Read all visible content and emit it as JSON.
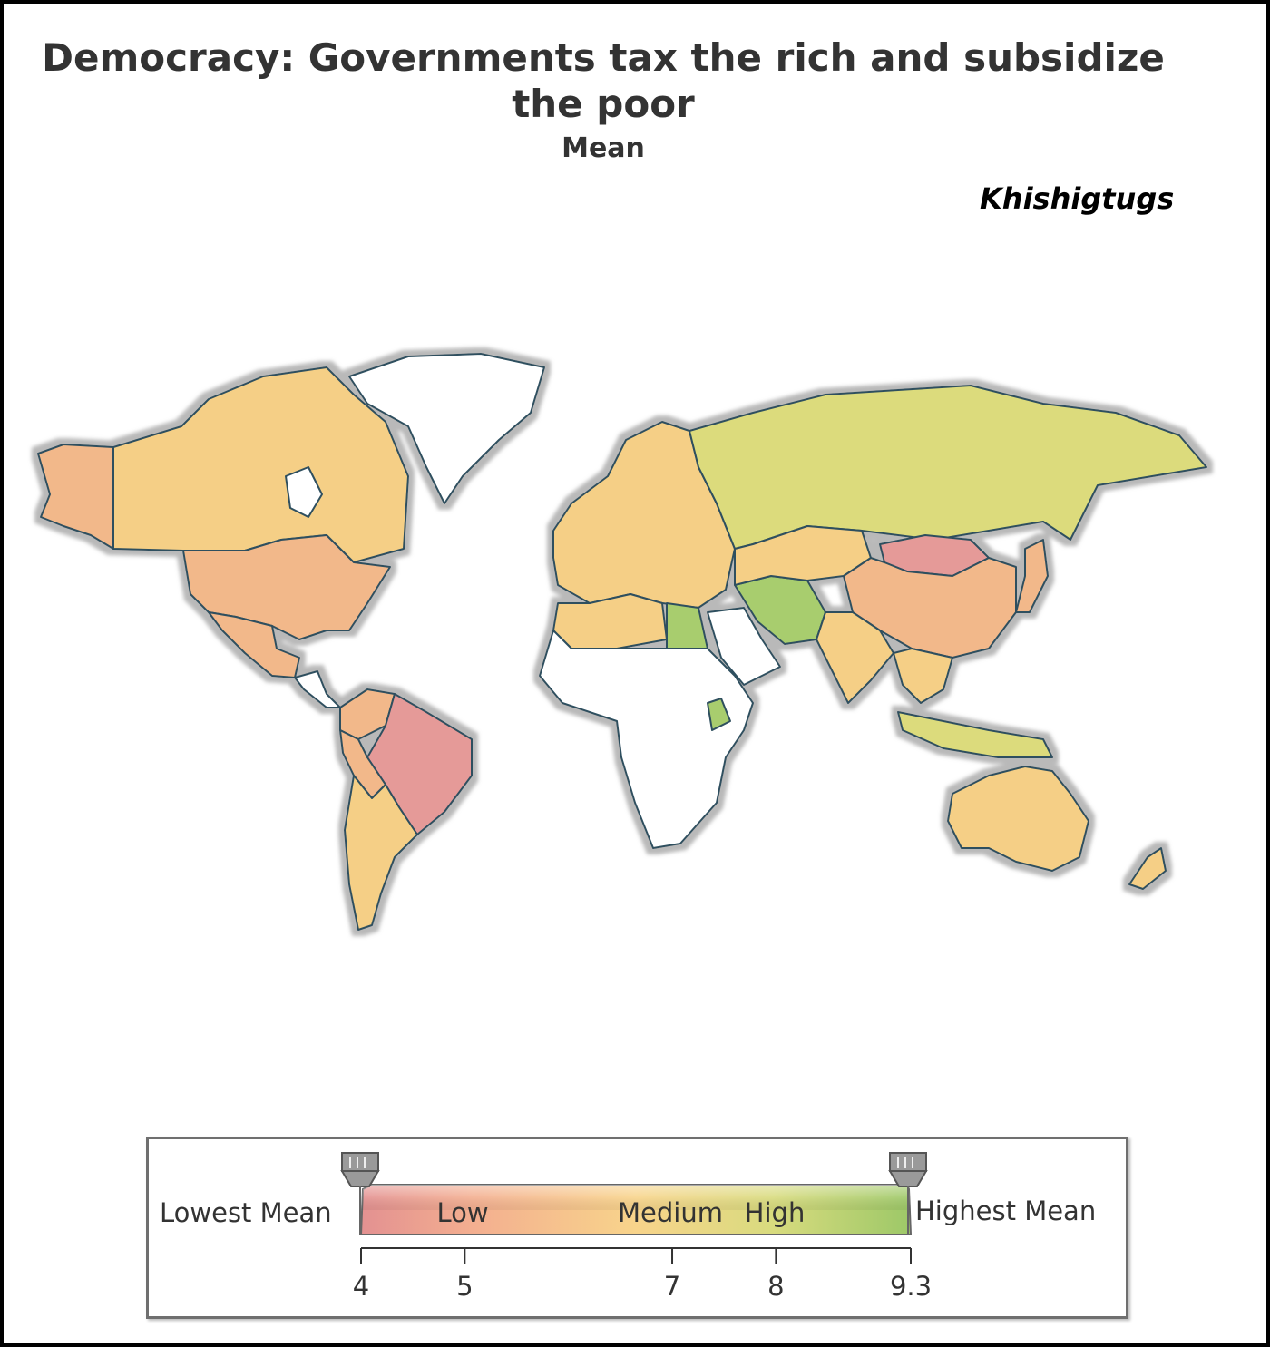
{
  "header": {
    "title_line1": "Democracy: Governments tax the rich and subsidize",
    "title_line2": "the poor",
    "subtitle": "Mean",
    "author": "Khishigtugs"
  },
  "colors": {
    "no_data": "#ffffff",
    "low": "#e59a98",
    "medium_low": "#f2b88a",
    "medium": "#f5cf86",
    "medium_high": "#dcdb7c",
    "high": "#a8cd6e",
    "border": "#2f4f5f",
    "halo": "#b9b9b9"
  },
  "legend": {
    "left_label": "Lowest Mean",
    "right_label": "Highest Mean",
    "band_low": "Low",
    "band_medium": "Medium",
    "band_high": "High",
    "min": 4,
    "max": 9.3,
    "ticks": [
      {
        "value": 4,
        "label": "4"
      },
      {
        "value": 5,
        "label": "5"
      },
      {
        "value": 7,
        "label": "7"
      },
      {
        "value": 8,
        "label": "8"
      },
      {
        "value": 9.3,
        "label": "9.3"
      }
    ]
  },
  "map_regions": [
    {
      "name": "alaska",
      "level": "medium_low"
    },
    {
      "name": "canada",
      "level": "medium"
    },
    {
      "name": "greenland",
      "level": "no_data"
    },
    {
      "name": "usa",
      "level": "medium_low"
    },
    {
      "name": "mexico",
      "level": "medium_low"
    },
    {
      "name": "central-america",
      "level": "no_data"
    },
    {
      "name": "colombia-venezuela",
      "level": "medium_low"
    },
    {
      "name": "brazil",
      "level": "low"
    },
    {
      "name": "andes",
      "level": "medium_low"
    },
    {
      "name": "argentina-chile",
      "level": "medium"
    },
    {
      "name": "europe",
      "level": "medium"
    },
    {
      "name": "russia",
      "level": "medium_high"
    },
    {
      "name": "north-africa-west",
      "level": "medium"
    },
    {
      "name": "egypt",
      "level": "high"
    },
    {
      "name": "africa",
      "level": "no_data"
    },
    {
      "name": "middle-east",
      "level": "no_data"
    },
    {
      "name": "iran-pakistan",
      "level": "high"
    },
    {
      "name": "central-asia",
      "level": "medium"
    },
    {
      "name": "mongolia",
      "level": "low"
    },
    {
      "name": "china",
      "level": "medium_low"
    },
    {
      "name": "india",
      "level": "medium"
    },
    {
      "name": "southeast-asia",
      "level": "medium"
    },
    {
      "name": "indonesia",
      "level": "medium_high"
    },
    {
      "name": "japan",
      "level": "medium_low"
    },
    {
      "name": "australia",
      "level": "medium"
    },
    {
      "name": "new-zealand",
      "level": "medium"
    }
  ]
}
